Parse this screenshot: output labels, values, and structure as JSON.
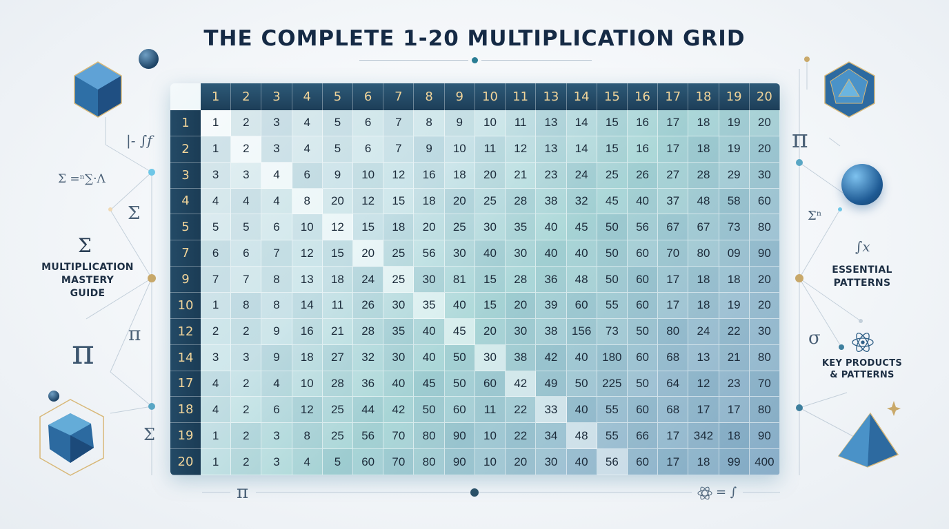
{
  "title": "THE COMPLETE 1-20 MULTIPLICATION GRID",
  "left_label": [
    "MULTIPLICATION",
    "MASTERY",
    "GUIDE"
  ],
  "right_label_1": [
    "ESSENTIAL",
    "PATTERNS"
  ],
  "right_label_2": [
    "KEY PRODUCTS",
    "& PATTERNS"
  ],
  "decor_text": {
    "left_top_formula": "|- ∫f",
    "left_sigma_formula": "Σ =ⁿ∑·Λ",
    "left_sigma_1": "Σ",
    "left_sigma_2": "Σ",
    "left_pi_big": "π",
    "left_pi_small": "π",
    "left_sigma_bottom": "Σ",
    "right_pi": "π",
    "right_sigma_n": "Σⁿ",
    "right_int_x": "∫x",
    "right_sigma_small": "σ",
    "bottom_pi": "π",
    "bottom_right_formula": "= ∫"
  },
  "grid": {
    "column_headers": [
      "1",
      "2",
      "3",
      "4",
      "5",
      "6",
      "7",
      "8",
      "9",
      "10",
      "11",
      "13",
      "14",
      "15",
      "16",
      "17",
      "18",
      "19",
      "20"
    ],
    "row_headers": [
      "1",
      "2",
      "3",
      "4",
      "5",
      "7",
      "9",
      "10",
      "12",
      "14",
      "17",
      "18",
      "19",
      "20"
    ],
    "rows": [
      [
        "1",
        "2",
        "3",
        "4",
        "5",
        "6",
        "7",
        "8",
        "9",
        "10",
        "11",
        "13",
        "14",
        "15",
        "16",
        "17",
        "18",
        "19",
        "20"
      ],
      [
        "1",
        "2",
        "3",
        "4",
        "5",
        "6",
        "7",
        "9",
        "10",
        "11",
        "12",
        "13",
        "14",
        "15",
        "16",
        "17",
        "18",
        "19",
        "20"
      ],
      [
        "3",
        "3",
        "4",
        "6",
        "9",
        "10",
        "12",
        "16",
        "18",
        "20",
        "21",
        "23",
        "24",
        "25",
        "26",
        "27",
        "28",
        "29",
        "30"
      ],
      [
        "4",
        "4",
        "4",
        "8",
        "20",
        "12",
        "15",
        "18",
        "20",
        "25",
        "28",
        "38",
        "32",
        "45",
        "40",
        "37",
        "48",
        "58",
        "60"
      ],
      [
        "5",
        "5",
        "6",
        "10",
        "12",
        "15",
        "18",
        "20",
        "25",
        "30",
        "35",
        "40",
        "45",
        "50",
        "56",
        "67",
        "67",
        "73",
        "80"
      ],
      [
        "6",
        "6",
        "7",
        "12",
        "15",
        "20",
        "25",
        "56",
        "30",
        "40",
        "30",
        "40",
        "40",
        "50",
        "60",
        "70",
        "80",
        "09",
        "90"
      ],
      [
        "7",
        "7",
        "8",
        "13",
        "18",
        "24",
        "25",
        "30",
        "81",
        "15",
        "28",
        "36",
        "48",
        "50",
        "60",
        "17",
        "18",
        "18",
        "20"
      ],
      [
        "1",
        "8",
        "8",
        "14",
        "11",
        "26",
        "30",
        "35",
        "40",
        "15",
        "20",
        "39",
        "60",
        "55",
        "60",
        "17",
        "18",
        "19",
        "20"
      ],
      [
        "2",
        "2",
        "9",
        "16",
        "21",
        "28",
        "35",
        "40",
        "45",
        "20",
        "30",
        "38",
        "156",
        "73",
        "50",
        "80",
        "24",
        "22",
        "30"
      ],
      [
        "3",
        "3",
        "9",
        "18",
        "27",
        "32",
        "30",
        "40",
        "50",
        "30",
        "38",
        "42",
        "40",
        "180",
        "60",
        "68",
        "13",
        "21",
        "80"
      ],
      [
        "4",
        "2",
        "4",
        "10",
        "28",
        "36",
        "40",
        "45",
        "50",
        "60",
        "42",
        "49",
        "50",
        "225",
        "50",
        "64",
        "12",
        "23",
        "70"
      ],
      [
        "4",
        "2",
        "6",
        "12",
        "25",
        "44",
        "42",
        "50",
        "60",
        "11",
        "22",
        "33",
        "40",
        "55",
        "60",
        "68",
        "17",
        "17",
        "80"
      ],
      [
        "1",
        "2",
        "3",
        "8",
        "25",
        "56",
        "70",
        "80",
        "90",
        "10",
        "22",
        "34",
        "48",
        "55",
        "66",
        "17",
        "342",
        "18",
        "90"
      ],
      [
        "1",
        "2",
        "3",
        "4",
        "5",
        "60",
        "70",
        "80",
        "90",
        "10",
        "20",
        "30",
        "40",
        "56",
        "60",
        "17",
        "18",
        "99",
        "400"
      ]
    ]
  },
  "colors": {
    "header_bg": "#1d3e58",
    "header_text": "#f0d49a",
    "title": "#152a45",
    "accent": "#2a7d94"
  }
}
